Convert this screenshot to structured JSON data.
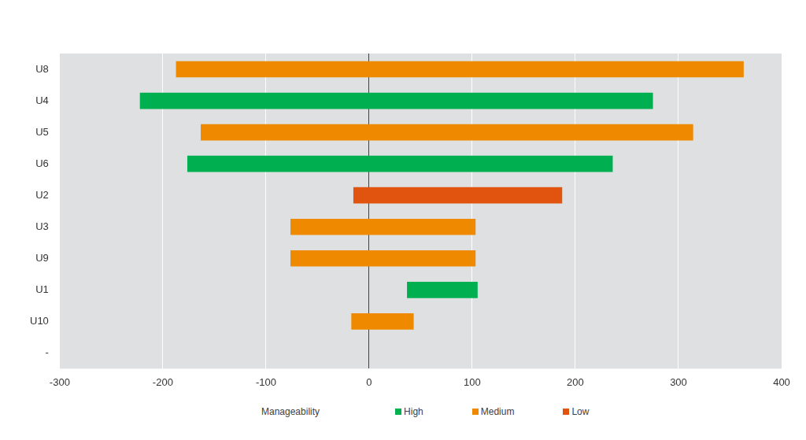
{
  "chart_data": {
    "type": "bar",
    "orientation": "horizontal",
    "categories": [
      "U8",
      "U4",
      "U5",
      "U6",
      "U2",
      "U3",
      "U9",
      "U1",
      "U10",
      "-"
    ],
    "legend_title": "Manageability",
    "series": [
      {
        "name": "High",
        "color": "#00b050",
        "values": [
          null,
          [
            -222,
            275
          ],
          null,
          [
            -176,
            236
          ],
          null,
          null,
          null,
          [
            37,
            105
          ],
          null,
          null
        ]
      },
      {
        "name": "Medium",
        "color": "#ef8a00",
        "values": [
          [
            -187,
            363
          ],
          null,
          [
            -163,
            314
          ],
          null,
          null,
          [
            -76,
            103
          ],
          [
            -76,
            103
          ],
          null,
          [
            -17,
            43
          ],
          null
        ]
      },
      {
        "name": "Low",
        "color": "#e0540f",
        "values": [
          null,
          null,
          null,
          null,
          [
            -15,
            187
          ],
          null,
          null,
          null,
          null,
          null
        ]
      }
    ],
    "xlim": [
      -300,
      400
    ],
    "xticks": [
      -300,
      -200,
      -100,
      0,
      100,
      200,
      300,
      400
    ],
    "grid": true,
    "legend": "bottom"
  }
}
